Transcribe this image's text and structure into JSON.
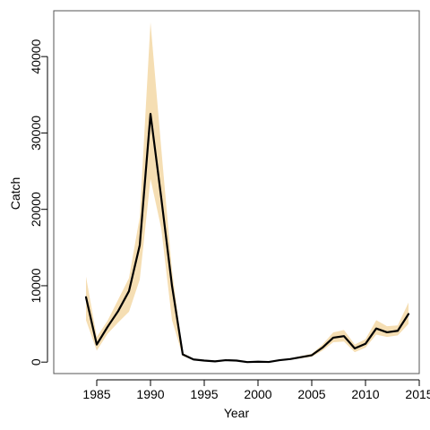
{
  "chart_data": {
    "type": "line",
    "title": "",
    "xlabel": "Year",
    "ylabel": "Catch",
    "xlim": [
      1981,
      2015
    ],
    "ylim": [
      -1500,
      46000
    ],
    "xticks": [
      1985,
      1990,
      1995,
      2000,
      2005,
      2010,
      2015
    ],
    "yticks": [
      0,
      10000,
      20000,
      30000,
      40000
    ],
    "grid": false,
    "legend": "none",
    "colors": {
      "line": "#000000",
      "band": "#f5deb3",
      "axis": "#000000"
    },
    "series": [
      {
        "x": [
          1984,
          1985,
          1986,
          1987,
          1988,
          1989,
          1990,
          1991,
          1992,
          1993,
          1994,
          1995,
          1996,
          1997,
          1998,
          1999,
          2000,
          2001,
          2002,
          2003,
          2004,
          2005,
          2006,
          2007,
          2008,
          2009,
          2010,
          2011,
          2012,
          2013,
          2014
        ],
        "y": [
          8500,
          2300,
          4600,
          6700,
          9300,
          15300,
          32500,
          21500,
          10000,
          1000,
          350,
          200,
          100,
          250,
          200,
          0,
          50,
          20,
          250,
          400,
          650,
          900,
          1900,
          3200,
          3400,
          1800,
          2400,
          4400,
          3900,
          4100,
          6300
        ],
        "lower": [
          5500,
          1500,
          3700,
          5200,
          6600,
          10800,
          24000,
          17500,
          5500,
          800,
          250,
          150,
          80,
          200,
          150,
          0,
          30,
          10,
          200,
          300,
          500,
          700,
          1500,
          2600,
          2700,
          1300,
          1900,
          3600,
          3300,
          3500,
          5000
        ],
        "upper": [
          11200,
          3300,
          5400,
          8200,
          11000,
          19000,
          44500,
          28000,
          12000,
          1200,
          450,
          250,
          130,
          320,
          260,
          20,
          80,
          30,
          320,
          500,
          800,
          1100,
          2300,
          3900,
          4200,
          2300,
          3000,
          5500,
          4700,
          4800,
          7800
        ]
      }
    ]
  }
}
